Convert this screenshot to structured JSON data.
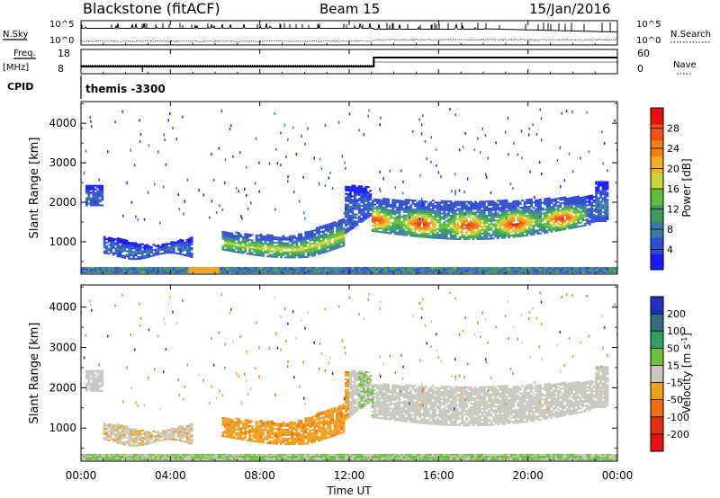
{
  "header": {
    "station": "Blackstone (fitACF)",
    "beam": "Beam 15",
    "date": "15/Jan/2016"
  },
  "params": {
    "nsky_label": "N.Sky",
    "nsearch_label": "N.Search",
    "nsky_ticks": [
      "10^5",
      "10^0"
    ],
    "freq_label_1": "Freq.",
    "freq_label_2": "[MHz]",
    "freq_ticks": [
      "18",
      "8"
    ],
    "nave_label": "Nave",
    "nave_ticks": [
      "60",
      "0"
    ],
    "cpid_label": "CPID",
    "cpid_value": "themis -3300",
    "freq_step_hour": 13.1
  },
  "chart_data": [
    {
      "type": "heatmap",
      "name": "power",
      "ylabel": "Slant Range [km]",
      "yticks": [
        1000,
        2000,
        3000,
        4000
      ],
      "ylim": [
        180,
        4550
      ],
      "colorbar_label": "Power [dB]",
      "colorbar_ticks": [
        4,
        8,
        12,
        16,
        20,
        24,
        28
      ],
      "colorbar_range": [
        0,
        32
      ],
      "colorbar_colors": [
        "#1a1aff",
        "#2f4fd0",
        "#3a7aa8",
        "#3f9a60",
        "#5fbf3a",
        "#c8d43a",
        "#f0b020",
        "#f08010",
        "#f05010",
        "#e81010"
      ]
    },
    {
      "type": "heatmap",
      "name": "velocity",
      "ylabel": "Slant Range [km]",
      "yticks": [
        1000,
        2000,
        3000,
        4000
      ],
      "ylim": [
        180,
        4550
      ],
      "colorbar_label": "Velocity [m s^-1]",
      "colorbar_ticks": [
        200,
        100,
        50,
        15,
        -15,
        -50,
        -100,
        -200
      ],
      "colorbar_colors": [
        "#2030c0",
        "#307080",
        "#30a060",
        "#70c040",
        "#c8c8c0",
        "#f0a020",
        "#f07010",
        "#e83010",
        "#e81010"
      ]
    }
  ],
  "xaxis": {
    "xlabel": "Time UT",
    "xticks": [
      "00:00",
      "04:00",
      "08:00",
      "12:00",
      "16:00",
      "20:00",
      "00:00"
    ],
    "xlim": [
      0,
      24
    ]
  }
}
